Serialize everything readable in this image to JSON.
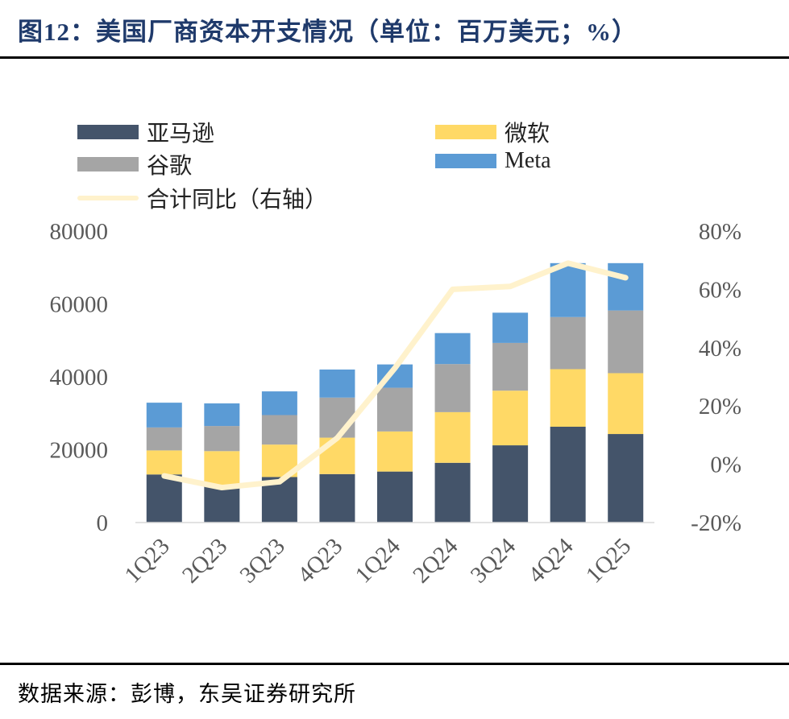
{
  "title": "图12：美国厂商资本开支情况（单位：百万美元；%）",
  "source": "数据来源：彭博，东吴证券研究所",
  "chart_data": {
    "type": "bar",
    "stacked": true,
    "categories": [
      "1Q23",
      "2Q23",
      "3Q23",
      "4Q23",
      "1Q24",
      "2Q24",
      "3Q24",
      "4Q24",
      "1Q25"
    ],
    "series": [
      {
        "name": "亚马逊",
        "color": "#44546a",
        "values": [
          13200,
          10000,
          12500,
          13300,
          14000,
          16400,
          21200,
          26300,
          24300
        ]
      },
      {
        "name": "微软",
        "color": "#ffd966",
        "values": [
          6600,
          9600,
          8900,
          10000,
          11000,
          13900,
          15000,
          15800,
          16700
        ]
      },
      {
        "name": "谷歌",
        "color": "#a5a5a5",
        "values": [
          6300,
          6900,
          8100,
          11000,
          12000,
          13200,
          13100,
          14300,
          17200
        ]
      },
      {
        "name": "Meta",
        "color": "#5b9bd5",
        "values": [
          6800,
          6200,
          6500,
          7700,
          6400,
          8500,
          8300,
          14800,
          13000
        ]
      }
    ],
    "line_series": {
      "name": "合计同比（右轴）",
      "color": "#fff2cc",
      "axis": "right",
      "values": [
        -4,
        -8,
        -6,
        9,
        33,
        60,
        61,
        69,
        64
      ]
    },
    "y_left": {
      "min": 0,
      "max": 80000,
      "ticks": [
        "0",
        "20000",
        "40000",
        "60000",
        "80000"
      ]
    },
    "y_right": {
      "min": -20,
      "max": 80,
      "ticks": [
        "-20%",
        "0%",
        "20%",
        "40%",
        "60%",
        "80%"
      ]
    },
    "legend": [
      "亚马逊",
      "微软",
      "谷歌",
      "Meta",
      "合计同比（右轴）"
    ],
    "legend_position": "top"
  }
}
